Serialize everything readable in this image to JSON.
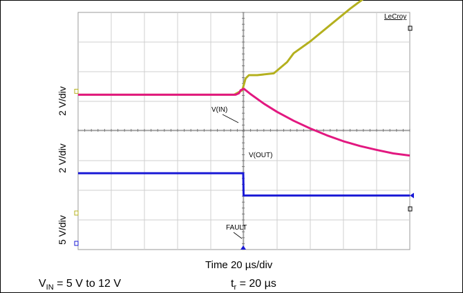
{
  "chart_data": {
    "type": "line",
    "scope_brand": "LeCroy",
    "x_axis_label": "Time 20 µs/div",
    "grid": true,
    "divisions": {
      "x": 10,
      "y": 8
    },
    "channels": [
      {
        "name": "V(IN)",
        "scale_label": "2 V/div",
        "color": "#b4b01e",
        "x_div": [
          0,
          4.7,
          4.95,
          5.05,
          5.15,
          5.4,
          5.9,
          6.3,
          6.5,
          7.0,
          7.6,
          8.2,
          8.8,
          9.4,
          10.0
        ],
        "y_div": [
          1.2,
          1.2,
          1.35,
          1.75,
          1.86,
          1.86,
          1.92,
          2.3,
          2.6,
          3.0,
          3.55,
          4.1,
          4.6,
          5.0,
          5.15
        ]
      },
      {
        "name": "V(OUT)",
        "scale_label": "2 V/div",
        "color": "#e21880",
        "x_div": [
          0,
          4.75,
          4.85,
          4.9,
          5.0,
          5.2,
          5.6,
          6.0,
          6.5,
          7.0,
          7.5,
          8.0,
          8.5,
          9.0,
          9.5,
          10.0
        ],
        "y_div": [
          1.2,
          1.2,
          1.25,
          1.35,
          1.4,
          1.22,
          0.9,
          0.62,
          0.32,
          0.06,
          -0.17,
          -0.37,
          -0.53,
          -0.66,
          -0.78,
          -0.85
        ]
      },
      {
        "name": "FAULT",
        "scale_label": "5 V/div",
        "color": "#1a1ad6",
        "x_div": [
          0,
          4.98,
          4.99,
          10.0
        ],
        "y_div": [
          -1.45,
          -1.45,
          -2.2,
          -2.2
        ]
      }
    ]
  },
  "notes": {
    "vin_range": {
      "prefix": "V",
      "sub": "IN",
      "text": " = 5 V to 12 V"
    },
    "rise_time": {
      "prefix": "t",
      "sub": "r",
      "text": " = 20 µs"
    }
  }
}
